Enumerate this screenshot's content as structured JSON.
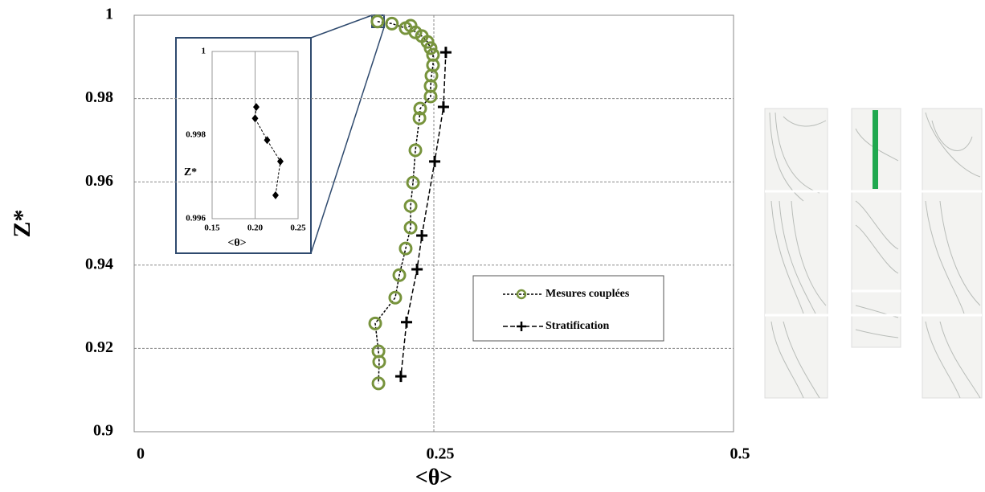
{
  "chart_data": [
    {
      "type": "line",
      "xlabel": "<θ>",
      "ylabel": "Z*",
      "xlim": [
        0,
        0.5
      ],
      "xticks": [
        0,
        0.25,
        0.5
      ],
      "ylim": [
        0.9,
        1
      ],
      "yticks": [
        0.9,
        0.92,
        0.94,
        0.96,
        0.98,
        1
      ],
      "grid": "both",
      "legend": "lower right",
      "series": [
        {
          "name": "Mesures couplées",
          "color": "#77933c",
          "marker": "circle",
          "x": [
            0.203,
            0.215,
            0.2265,
            0.2306,
            0.2346,
            0.24,
            0.2447,
            0.2473,
            0.2493,
            0.2493,
            0.248,
            0.2473,
            0.2473,
            0.2386,
            0.238,
            0.2346,
            0.2326,
            0.2306,
            0.2306,
            0.2265,
            0.2212,
            0.2178,
            0.2011,
            0.2038,
            0.2044,
            0.2038
          ],
          "values": [
            0.9985,
            0.998,
            0.9969,
            0.9975,
            0.9959,
            0.995,
            0.9936,
            0.9921,
            0.9905,
            0.988,
            0.9855,
            0.983,
            0.9805,
            0.9776,
            0.9753,
            0.9676,
            0.9598,
            0.9542,
            0.949,
            0.944,
            0.9376,
            0.9322,
            0.926,
            0.9193,
            0.9168,
            0.9116
          ]
        },
        {
          "name": "Stratification",
          "color": "#000000",
          "marker": "plus",
          "x": [
            0.26,
            0.258,
            0.2507,
            0.24,
            0.236,
            0.2272,
            0.2225
          ],
          "values": [
            0.9911,
            0.978,
            0.9649,
            0.9471,
            0.939,
            0.9263,
            0.9133
          ]
        }
      ]
    },
    {
      "type": "line",
      "xlabel": "<θ>",
      "ylabel": "Z*",
      "xlim": [
        0.15,
        0.25
      ],
      "xticks": [
        0.15,
        {
          "value": 0.2,
          "label": "0.20"
        },
        0.25
      ],
      "ylim": [
        0.996,
        1
      ],
      "yticks": [
        0.996,
        0.998,
        1
      ],
      "grid": "x",
      "series": [
        {
          "color": "#000000",
          "marker": "diamond",
          "x": [
            0.2014,
            0.2,
            0.214,
            0.2294,
            0.2238
          ],
          "values": [
            0.99867,
            0.9984,
            0.99788,
            0.99737,
            0.99656
          ]
        }
      ]
    }
  ]
}
